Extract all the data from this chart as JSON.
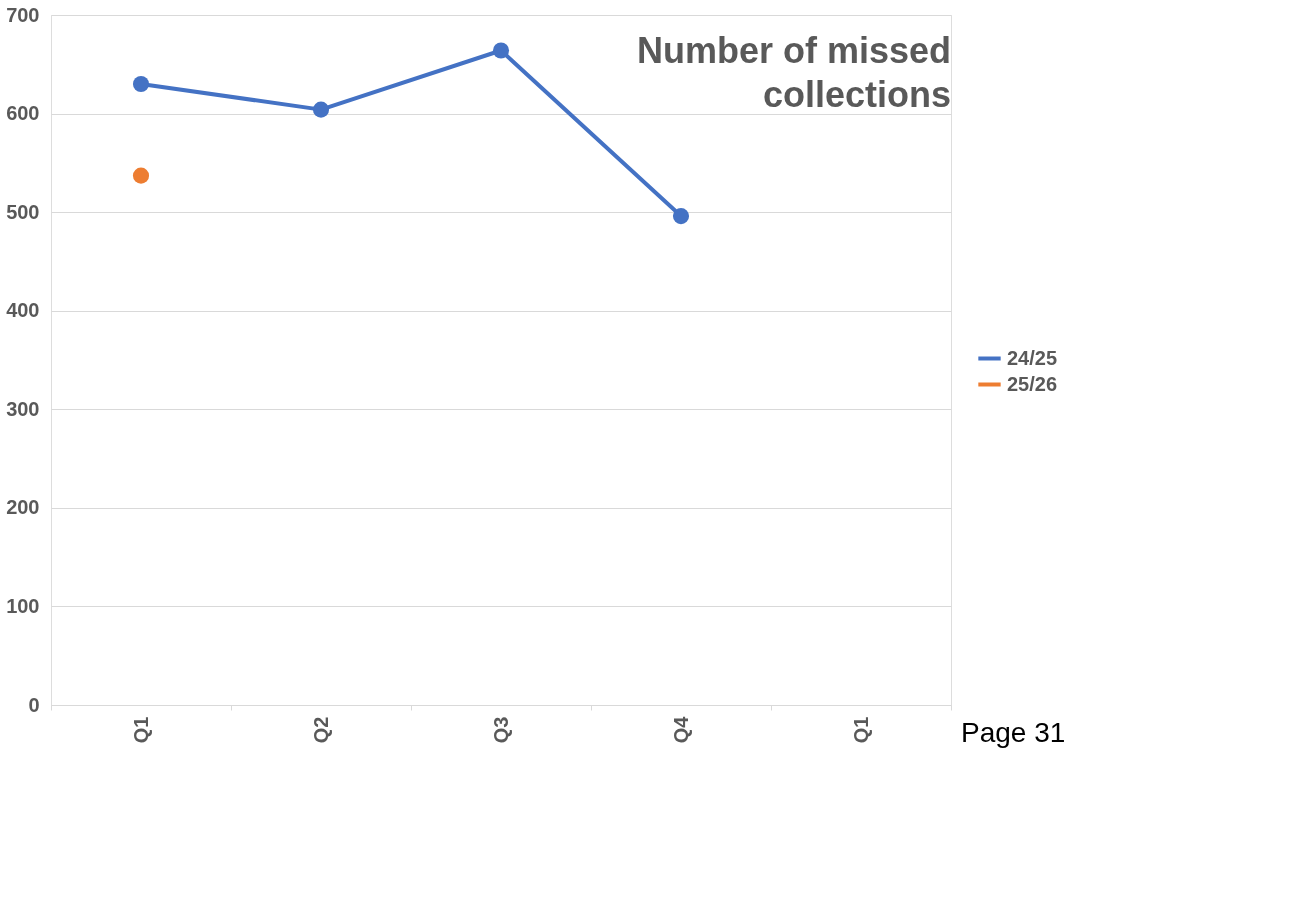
{
  "chart_data": {
    "type": "line",
    "title": "Number of missed collections",
    "categories": [
      "Q1",
      "Q2",
      "Q3",
      "Q4",
      "Q1"
    ],
    "series": [
      {
        "name": "24/25",
        "color": "#4472c4",
        "values": [
          630,
          604,
          664,
          496,
          null
        ]
      },
      {
        "name": "25/26",
        "color": "#ed7d31",
        "values": [
          537,
          null,
          null,
          null,
          null
        ]
      }
    ],
    "ylim": [
      0,
      700
    ],
    "yticks": [
      0,
      100,
      200,
      300,
      400,
      500,
      600,
      700
    ],
    "grid": "y",
    "legend": "right",
    "marker": "circle",
    "line_style": "solid",
    "annotations": [
      "Page 31"
    ]
  }
}
